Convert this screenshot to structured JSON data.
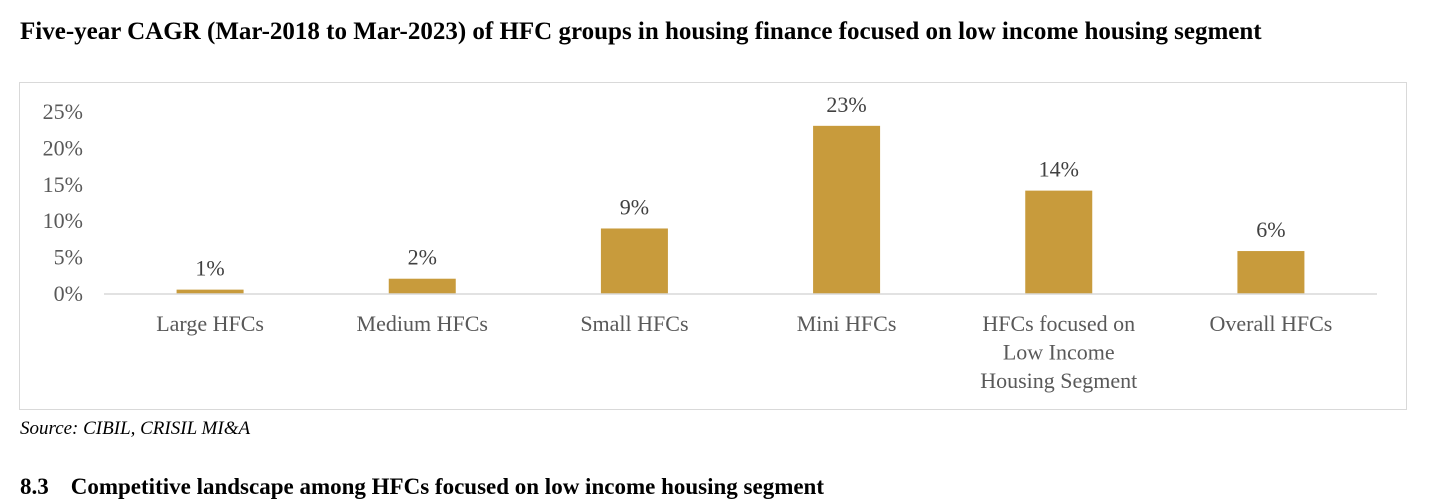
{
  "title": "Five-year CAGR (Mar-2018 to Mar-2023) of HFC groups in housing finance focused on low income housing segment",
  "chart_data": {
    "type": "bar",
    "categories": [
      [
        "Large HFCs"
      ],
      [
        "Medium HFCs"
      ],
      [
        "Small HFCs"
      ],
      [
        "Mini HFCs"
      ],
      [
        "HFCs focused on",
        "Low Income",
        "Housing Segment"
      ],
      [
        "Overall HFCs"
      ]
    ],
    "values": [
      0.6,
      2.1,
      9.0,
      23.1,
      14.2,
      5.9
    ],
    "data_labels": [
      "1%",
      "2%",
      "9%",
      "23%",
      "14%",
      "6%"
    ],
    "ylim": [
      0,
      25
    ],
    "yticks": [
      {
        "value": 0,
        "label": "0%"
      },
      {
        "value": 5,
        "label": "5%"
      },
      {
        "value": 10,
        "label": "10%"
      },
      {
        "value": 15,
        "label": "15%"
      },
      {
        "value": 20,
        "label": "20%"
      },
      {
        "value": 25,
        "label": "25%"
      }
    ],
    "bar_color": "#C89B3C",
    "grid": false
  },
  "source": "Source: CIBIL, CRISIL MI&A",
  "section": {
    "number": "8.3",
    "heading": "Competitive landscape among HFCs focused on low income housing segment"
  }
}
